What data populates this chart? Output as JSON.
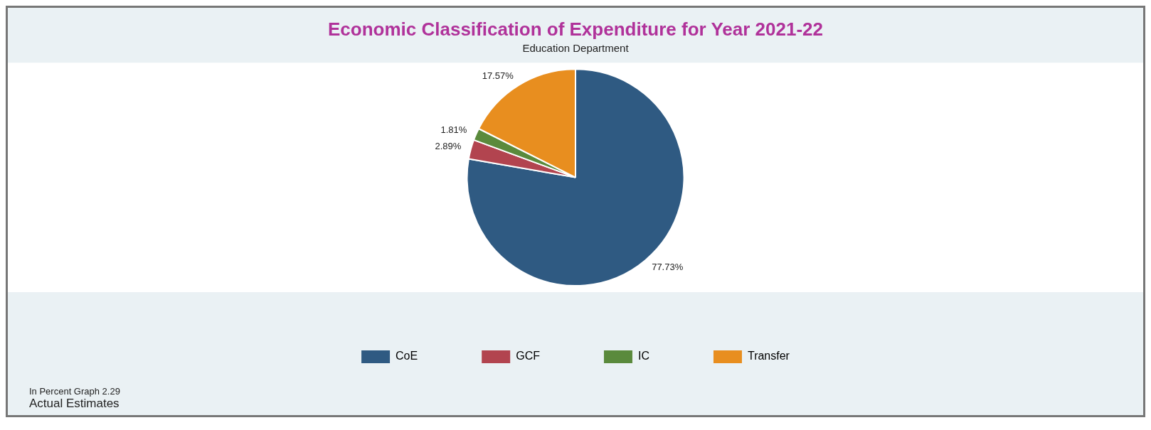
{
  "chart_data": {
    "type": "pie",
    "title": "Economic Classification of Expenditure for Year 2021-22",
    "subtitle": "Education Department",
    "categories": [
      "CoE",
      "GCF",
      "IC",
      "Transfer"
    ],
    "values": [
      77.73,
      2.89,
      1.81,
      17.57
    ],
    "colors": [
      "#2f5a82",
      "#b2444f",
      "#5a8a3c",
      "#e88e1f"
    ],
    "value_labels": [
      "77.73%",
      "2.89%",
      "1.81%",
      "17.57%"
    ],
    "legend": "bottom",
    "annotations": [
      "In Percent Graph 2.29",
      "Actual Estimates"
    ]
  }
}
